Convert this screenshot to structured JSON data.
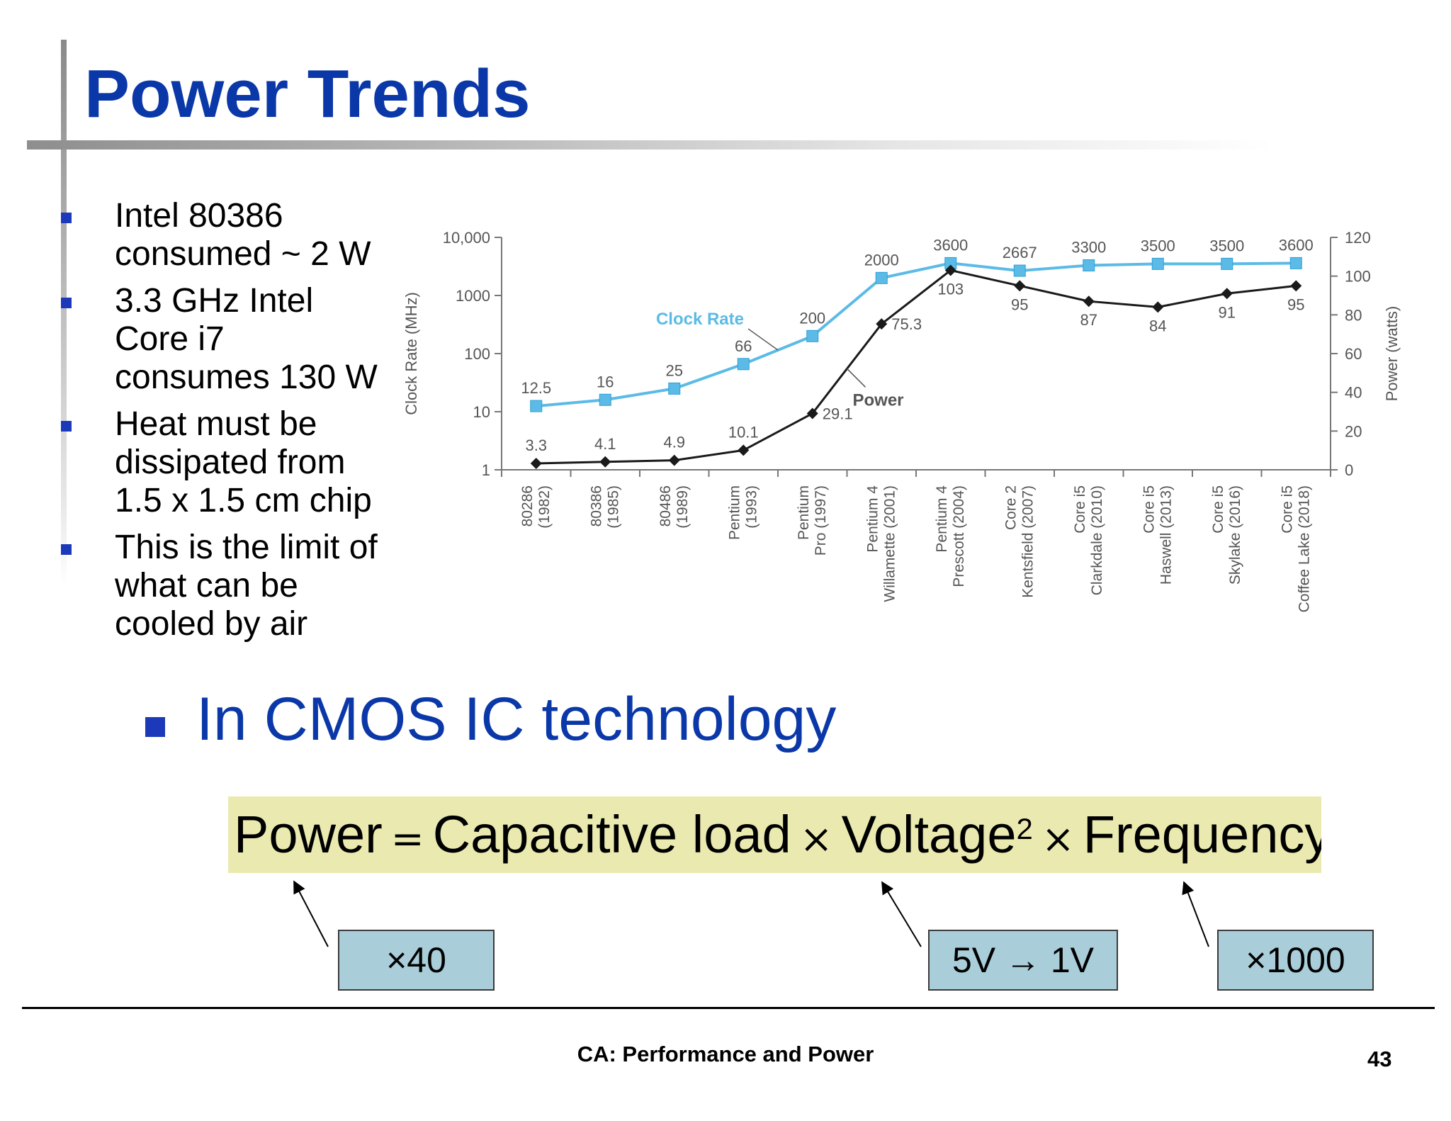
{
  "slide": {
    "title": "Power Trends",
    "bullets": [
      "Intel 80386\nconsumed ~ 2 W",
      "3.3 GHz Intel\nCore i7\nconsumes 130 W",
      "Heat must be\ndissipated from\n1.5 x 1.5 cm chip",
      "This is the limit of\nwhat can be\ncooled by air"
    ],
    "main_bullet": "In CMOS IC technology",
    "formula": {
      "power": "Power",
      "equals": "=",
      "capacitive_load": "Capacitive load",
      "times": "×",
      "voltage": "Voltage",
      "exponent": "2",
      "frequency": "Frequency"
    },
    "notes": {
      "capacitive": "×40",
      "voltage": "5V → 1V",
      "frequency": "×1000"
    },
    "footer": "CA: Performance and Power",
    "page_number": "43"
  },
  "chart_data": {
    "type": "line",
    "title": "",
    "categories": [
      [
        "80286",
        "(1982)"
      ],
      [
        "80386",
        "(1985)"
      ],
      [
        "80486",
        "(1989)"
      ],
      [
        "Pentium",
        "(1993)"
      ],
      [
        "Pentium",
        "Pro (1997)"
      ],
      [
        "Pentium 4",
        "Willamette (2001)"
      ],
      [
        "Pentium 4",
        "Prescott (2004)"
      ],
      [
        "Core 2",
        "Kentsfield (2007)"
      ],
      [
        "Core i5",
        "Clarkdale (2010)"
      ],
      [
        "Core i5",
        "Haswell (2013)"
      ],
      [
        "Core i5",
        "Skylake (2016)"
      ],
      [
        "Core i5",
        "Coffee Lake (2018)"
      ]
    ],
    "series": [
      {
        "name": "Clock Rate",
        "axis": "left",
        "color": "#5bbbe6",
        "marker": "square",
        "values": [
          12.5,
          16,
          25,
          66,
          200,
          2000,
          3600,
          2667,
          3300,
          3500,
          3500,
          3600
        ],
        "labels": [
          "12.5",
          "16",
          "25",
          "66",
          "200",
          "2000",
          "3600",
          "2667",
          "3300",
          "3500",
          "3500",
          "3600"
        ]
      },
      {
        "name": "Power",
        "axis": "right",
        "color": "#1a1a1a",
        "marker": "diamond",
        "values": [
          3.3,
          4.1,
          4.9,
          10.1,
          29.1,
          75.3,
          103,
          95,
          87,
          84,
          91,
          95
        ],
        "labels": [
          "3.3",
          "4.1",
          "4.9",
          "10.1",
          "29.1",
          "75.3",
          "103",
          "95",
          "87",
          "84",
          "91",
          "95"
        ]
      }
    ],
    "left_axis": {
      "label": "Clock Rate (MHz)",
      "scale": "log",
      "range": [
        1,
        10000
      ],
      "ticks": [
        1,
        10,
        100,
        1000,
        10000
      ],
      "tick_labels": [
        "1",
        "10",
        "100",
        "1000",
        "10,000"
      ]
    },
    "right_axis": {
      "label": "Power (watts)",
      "scale": "linear",
      "range": [
        0,
        120
      ],
      "ticks": [
        0,
        20,
        40,
        60,
        80,
        100,
        120
      ],
      "tick_labels": [
        "0",
        "20",
        "40",
        "60",
        "80",
        "100",
        "120"
      ]
    },
    "grid": false,
    "legend": "inline labels"
  }
}
